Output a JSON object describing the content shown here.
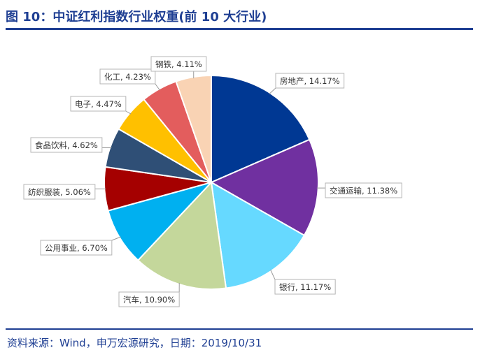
{
  "header": {
    "title": "图 10：中证红利指数行业权重(前 10 大行业)"
  },
  "footer": {
    "source": "资料来源：Wind，申万宏源研究，日期：2019/10/31"
  },
  "chart_data": {
    "type": "pie",
    "title": "图 10：中证红利指数行业权重(前 10 大行业)",
    "start_angle": "12 o'clock",
    "direction": "clockwise",
    "legend": "none (data labels)",
    "slices": [
      {
        "label": "房地产",
        "value": 14.17,
        "text": "房地产, 14.17%",
        "color": "#003893"
      },
      {
        "label": "交通运输",
        "value": 11.38,
        "text": "交通运输, 11.38%",
        "color": "#7030a0"
      },
      {
        "label": "银行",
        "value": 11.17,
        "text": "银行, 11.17%",
        "color": "#66d9ff"
      },
      {
        "label": "汽车",
        "value": 10.9,
        "text": "汽车, 10.90%",
        "color": "#c4d79b"
      },
      {
        "label": "公用事业",
        "value": 6.7,
        "text": "公用事业, 6.70%",
        "color": "#00b0f0"
      },
      {
        "label": "纺织服装",
        "value": 5.06,
        "text": "纺织服装, 5.06%",
        "color": "#a50000"
      },
      {
        "label": "食品饮料",
        "value": 4.62,
        "text": "食品饮料, 4.62%",
        "color": "#2f4f76"
      },
      {
        "label": "电子",
        "value": 4.47,
        "text": "电子, 4.47%",
        "color": "#ffc000"
      },
      {
        "label": "化工",
        "value": 4.23,
        "text": "化工, 4.23%",
        "color": "#e35d5d"
      },
      {
        "label": "钢铁",
        "value": 4.11,
        "text": "钢铁, 4.11%",
        "color": "#f9d3b4"
      }
    ]
  }
}
